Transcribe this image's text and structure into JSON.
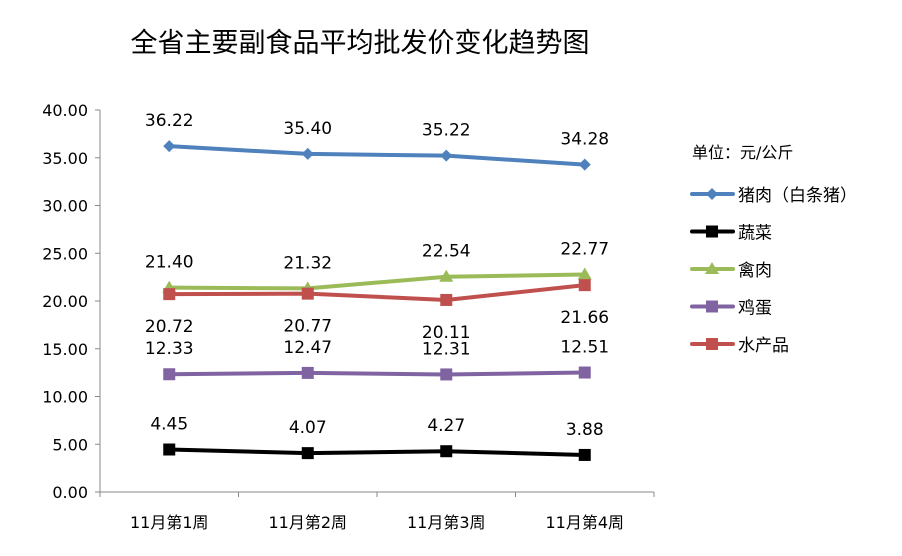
{
  "chart_data": {
    "type": "line",
    "title": "全省主要副食品平均批发价变化趋势图",
    "unit_label": "单位：元/公斤",
    "categories": [
      "11月第1周",
      "11月第2周",
      "11月第3周",
      "11月第4周"
    ],
    "ylim": [
      0,
      40
    ],
    "yticks": [
      "0.00",
      "5.00",
      "10.00",
      "15.00",
      "20.00",
      "25.00",
      "30.00",
      "35.00",
      "40.00"
    ],
    "grid": false,
    "legend_position": "right",
    "series": [
      {
        "name": "猪肉（白条猪）",
        "values": [
          36.22,
          35.4,
          35.22,
          34.28
        ],
        "labels": [
          "36.22",
          "35.40",
          "35.22",
          "34.28"
        ],
        "color": "#4f81bd",
        "marker": "diamond",
        "label_pos": "above"
      },
      {
        "name": "蔬菜",
        "values": [
          4.45,
          4.07,
          4.27,
          3.88
        ],
        "labels": [
          "4.45",
          "4.07",
          "4.27",
          "3.88"
        ],
        "color": "#000000",
        "marker": "square",
        "label_pos": "above"
      },
      {
        "name": "禽肉",
        "values": [
          21.4,
          21.32,
          22.54,
          22.77
        ],
        "labels": [
          "21.40",
          "21.32",
          "22.54",
          "22.77"
        ],
        "color": "#9bbb59",
        "marker": "triangle",
        "label_pos": "above"
      },
      {
        "name": "鸡蛋",
        "values": [
          12.33,
          12.47,
          12.31,
          12.51
        ],
        "labels": [
          "12.33",
          "12.47",
          "12.31",
          "12.51"
        ],
        "color": "#8064a2",
        "marker": "square",
        "label_pos": "above"
      },
      {
        "name": "水产品",
        "values": [
          20.72,
          20.77,
          20.11,
          21.66
        ],
        "labels": [
          "20.72",
          "20.77",
          "20.11",
          "21.66"
        ],
        "color": "#c0504d",
        "marker": "square",
        "label_pos": "below"
      }
    ]
  }
}
